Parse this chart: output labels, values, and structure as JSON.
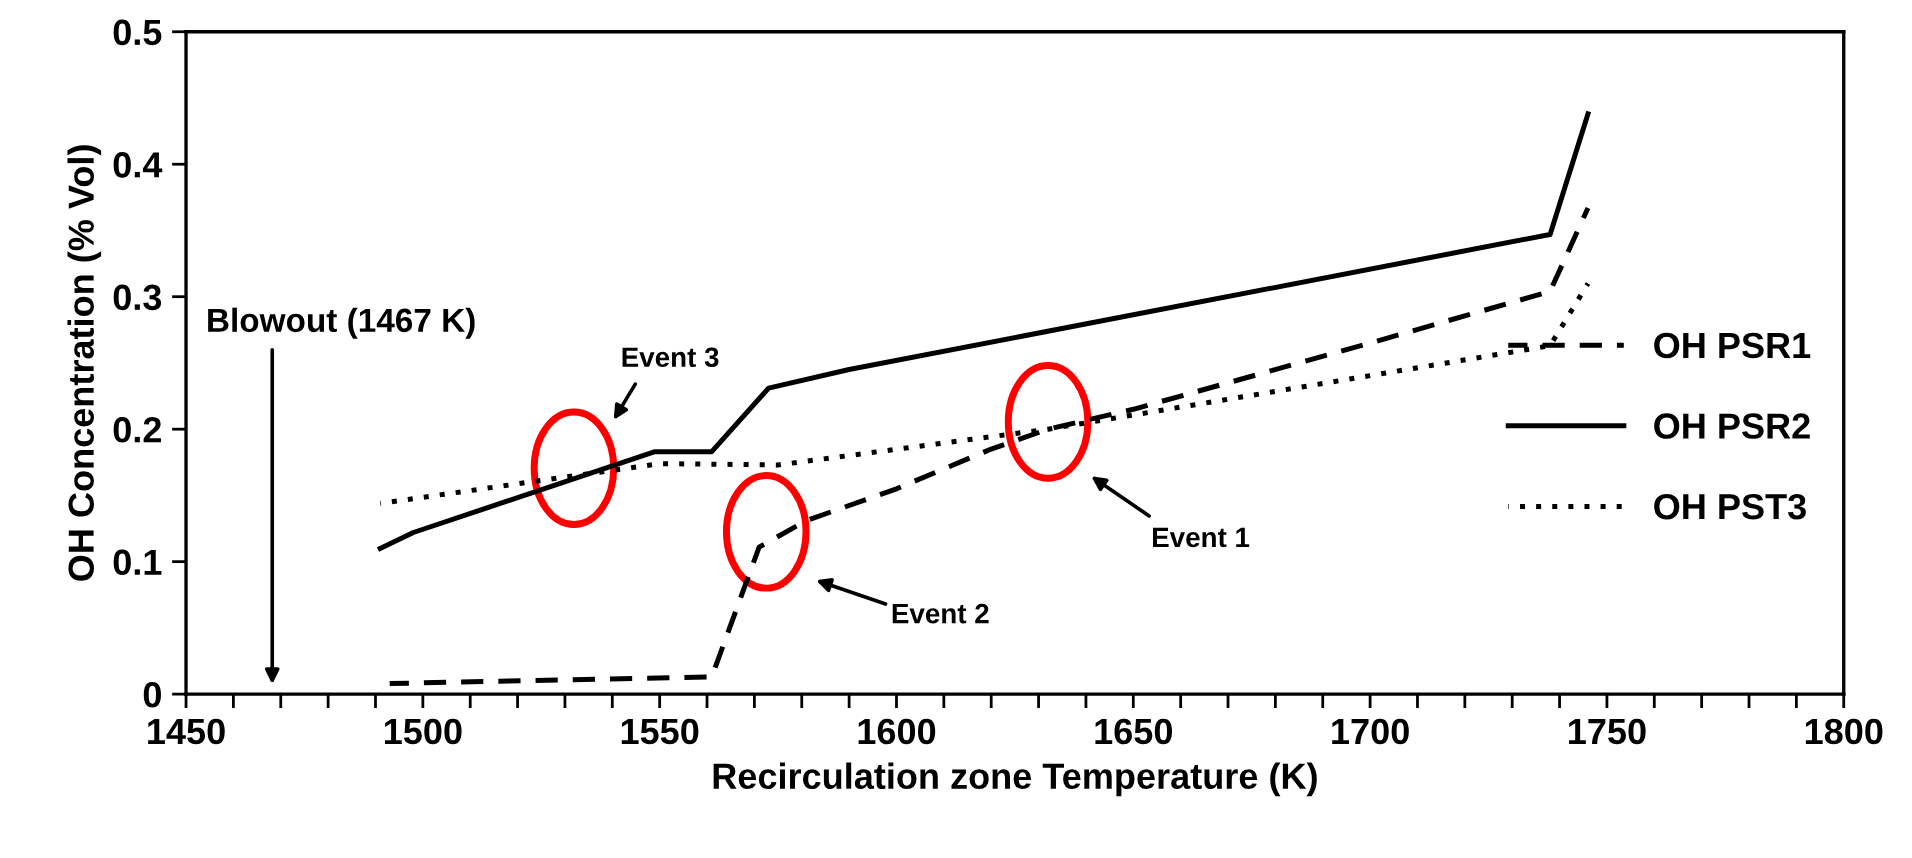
{
  "chart_data": {
    "type": "line",
    "xlabel": "Recirculation zone Temperature (K)",
    "ylabel": "OH Concentration (% Vol)",
    "xlim": [
      1450,
      1800
    ],
    "ylim": [
      0,
      0.5
    ],
    "xticks": [
      1450,
      {
        "value": 1460,
        "label": null
      },
      {
        "value": 1470,
        "label": null
      },
      {
        "value": 1480,
        "label": null
      },
      {
        "value": 1490,
        "label": null
      },
      1500,
      {
        "value": 1510,
        "label": null
      },
      {
        "value": 1520,
        "label": null
      },
      {
        "value": 1530,
        "label": null
      },
      {
        "value": 1540,
        "label": null
      },
      1550,
      {
        "value": 1560,
        "label": null
      },
      {
        "value": 1570,
        "label": null
      },
      {
        "value": 1580,
        "label": null
      },
      {
        "value": 1590,
        "label": null
      },
      1600,
      {
        "value": 1610,
        "label": null
      },
      {
        "value": 1620,
        "label": null
      },
      {
        "value": 1630,
        "label": null
      },
      {
        "value": 1640,
        "label": null
      },
      1650,
      {
        "value": 1660,
        "label": null
      },
      {
        "value": 1670,
        "label": null
      },
      {
        "value": 1680,
        "label": null
      },
      {
        "value": 1690,
        "label": null
      },
      1700,
      {
        "value": 1710,
        "label": null
      },
      {
        "value": 1720,
        "label": null
      },
      {
        "value": 1730,
        "label": null
      },
      {
        "value": 1740,
        "label": null
      },
      1750,
      {
        "value": 1760,
        "label": null
      },
      {
        "value": 1770,
        "label": null
      },
      {
        "value": 1780,
        "label": null
      },
      {
        "value": 1790,
        "label": null
      },
      1800
    ],
    "yticks": [
      0,
      0.1,
      0.2,
      0.3,
      0.4,
      0.5
    ],
    "grid": false,
    "legend": "right",
    "marker": "none",
    "series": [
      {
        "name": "OH PSR1",
        "color": "#000000",
        "line_style": "dashed",
        "x": [
          1493,
          1561,
          1571,
          1581,
          1600,
          1620,
          1632,
          1650,
          1700,
          1738,
          1746
        ],
        "values": [
          0.008,
          0.013,
          0.111,
          0.131,
          0.155,
          0.185,
          0.2,
          0.215,
          0.265,
          0.304,
          0.367
        ]
      },
      {
        "name": "OH PSR2",
        "color": "#000000",
        "line_style": "solid",
        "x": [
          1491,
          1498,
          1549,
          1561,
          1573,
          1590,
          1738,
          1746
        ],
        "values": [
          0.11,
          0.122,
          0.183,
          0.183,
          0.231,
          0.245,
          0.347,
          0.438
        ]
      },
      {
        "name": "OH PST3",
        "color": "#000000",
        "line_style": "dotted",
        "x": [
          1491,
          1550,
          1575,
          1632,
          1738,
          1746
        ],
        "values": [
          0.144,
          0.174,
          0.173,
          0.2,
          0.263,
          0.31
        ]
      }
    ],
    "annotations": [
      "Blowout (1467 K)",
      "Event 3",
      "Event 2",
      "Event 1"
    ]
  }
}
